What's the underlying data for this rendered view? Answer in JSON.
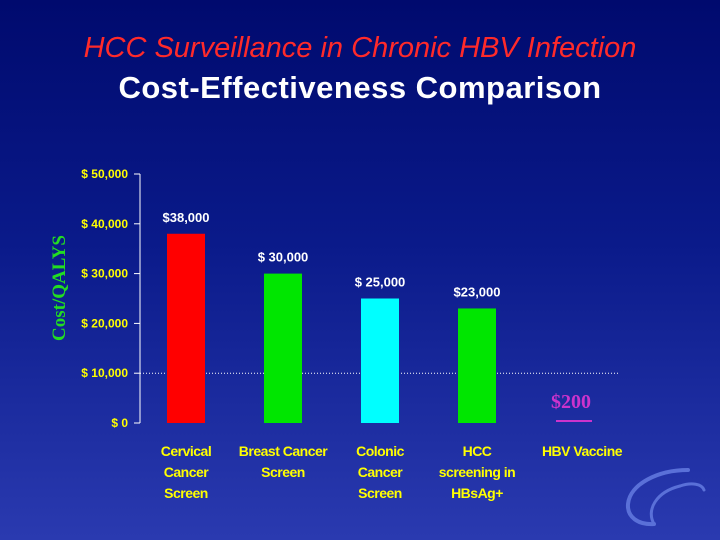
{
  "slide": {
    "title_line1": "HCC Surveillance in Chronic HBV Infection",
    "title_line2": "Cost-Effectiveness Comparison"
  },
  "chart_data": {
    "type": "bar",
    "ylabel": "Cost/QALYS",
    "ylim": [
      0,
      50000
    ],
    "yticks": [
      0,
      10000,
      20000,
      30000,
      40000,
      50000
    ],
    "ytick_labels": [
      "$ 0",
      "$ 10,000",
      "$ 20,000",
      "$ 30,000",
      "$ 40,000",
      "$ 50,000"
    ],
    "reference_line": 10000,
    "categories": [
      [
        "Cervical",
        "Cancer",
        "Screen"
      ],
      [
        "Breast Cancer",
        "Screen"
      ],
      [
        "Colonic",
        "Cancer",
        "Screen"
      ],
      [
        "HCC",
        "screening in",
        "HBsAg+"
      ],
      [
        "HBV Vaccine"
      ]
    ],
    "values": [
      38000,
      30000,
      25000,
      23000,
      200
    ],
    "value_labels": [
      "$38,000",
      "$ 30,000",
      "$ 25,000",
      "$23,000",
      "$200"
    ],
    "colors": [
      "#ff0000",
      "#00e600",
      "#00ffff",
      "#00e600",
      "#cc33cc"
    ]
  }
}
